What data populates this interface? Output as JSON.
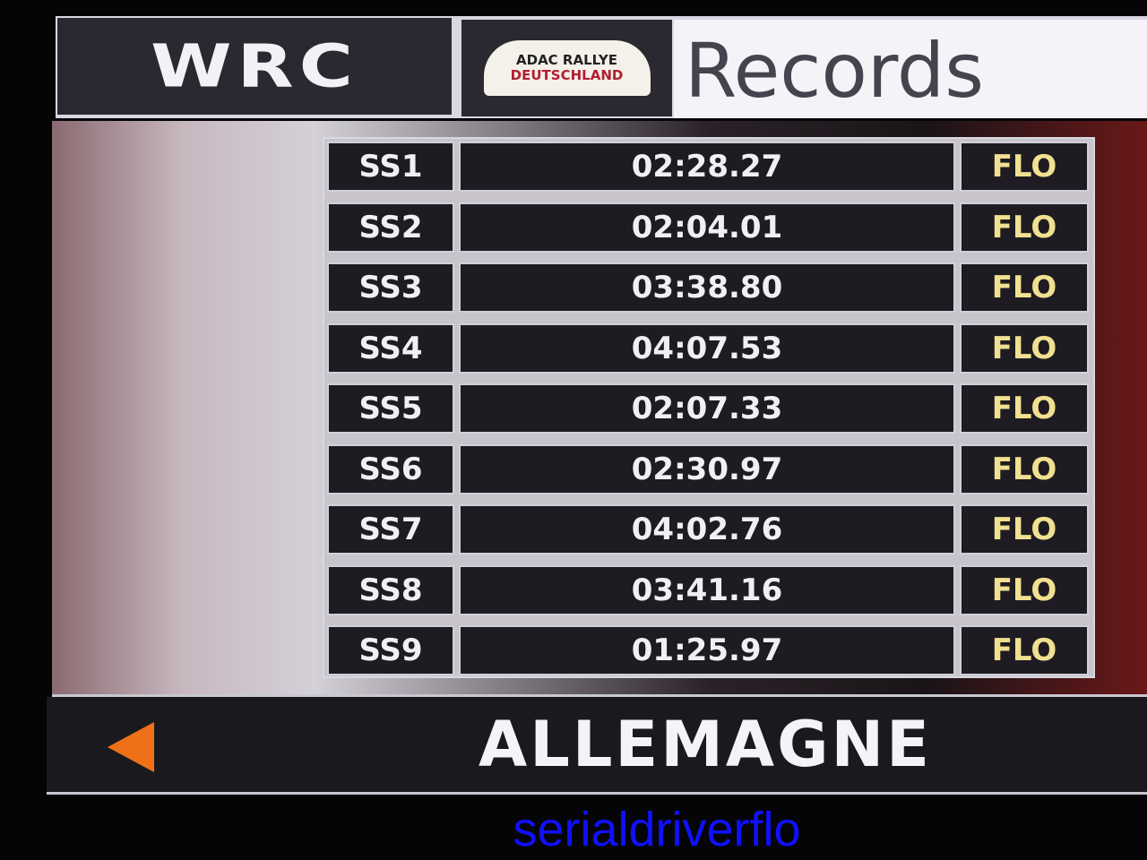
{
  "header": {
    "logo": "WRC",
    "rally_logo_line1": "ADAC RALLYE",
    "rally_logo_line2": "DEUTSCHLAND",
    "title": "Records"
  },
  "records": [
    {
      "stage": "SS1",
      "time": "02:28.27",
      "driver": "FLO"
    },
    {
      "stage": "SS2",
      "time": "02:04.01",
      "driver": "FLO"
    },
    {
      "stage": "SS3",
      "time": "03:38.80",
      "driver": "FLO"
    },
    {
      "stage": "SS4",
      "time": "04:07.53",
      "driver": "FLO"
    },
    {
      "stage": "SS5",
      "time": "02:07.33",
      "driver": "FLO"
    },
    {
      "stage": "SS6",
      "time": "02:30.97",
      "driver": "FLO"
    },
    {
      "stage": "SS7",
      "time": "04:02.76",
      "driver": "FLO"
    },
    {
      "stage": "SS8",
      "time": "03:41.16",
      "driver": "FLO"
    },
    {
      "stage": "SS9",
      "time": "01:25.97",
      "driver": "FLO"
    }
  ],
  "footer": {
    "country": "ALLEMAGNE",
    "back_icon": "left-arrow-icon",
    "accent": "#f07018"
  },
  "watermark": "serialdriverflo"
}
